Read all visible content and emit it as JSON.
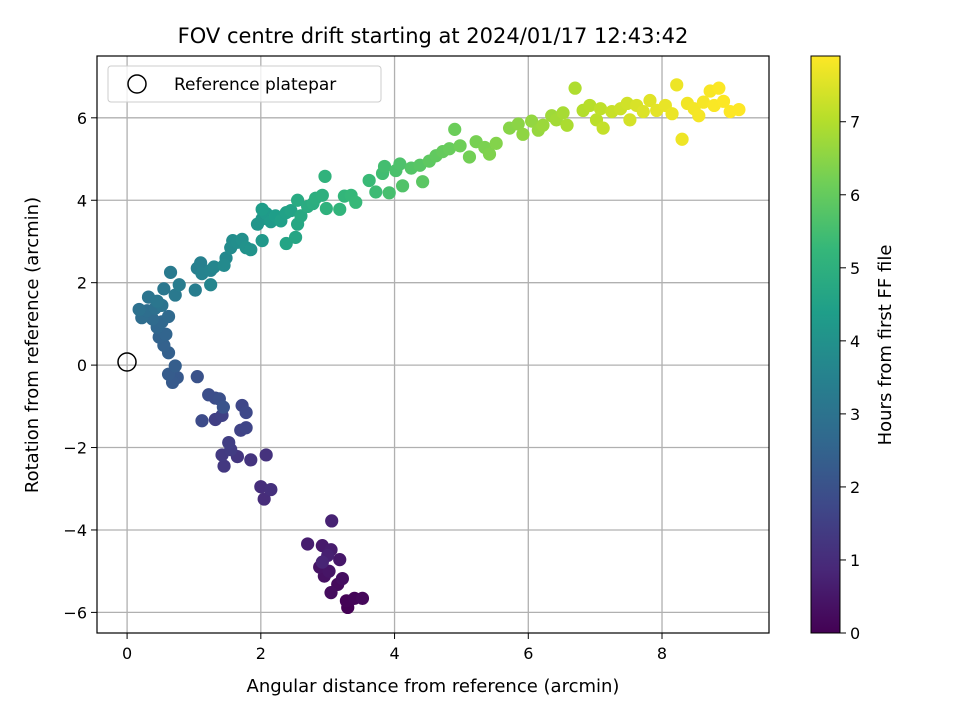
{
  "chart_data": {
    "type": "scatter",
    "title": "FOV centre drift starting at 2024/01/17 12:43:42",
    "xlabel": "Angular distance from reference (arcmin)",
    "ylabel": "Rotation from reference (arcmin)",
    "xlim": [
      -0.45,
      9.6
    ],
    "ylim": [
      -6.5,
      7.5
    ],
    "xticks": [
      0,
      2,
      4,
      6,
      8
    ],
    "xtick_labels": [
      "0",
      "2",
      "4",
      "6",
      "8"
    ],
    "yticks": [
      -6,
      -4,
      -2,
      0,
      2,
      4,
      6
    ],
    "ytick_labels": [
      "−6",
      "−4",
      "−2",
      "0",
      "2",
      "4",
      "6"
    ],
    "grid": true,
    "legend": {
      "position": "top-left",
      "entries": [
        {
          "label": "Reference platepar",
          "marker": "open-circle"
        }
      ]
    },
    "reference_point": {
      "x": 0,
      "y": 0
    },
    "colorbar": {
      "label": "Hours from first FF file",
      "range": [
        0,
        7.9
      ],
      "ticks": [
        0,
        1,
        2,
        3,
        4,
        5,
        6,
        7
      ],
      "tick_labels": [
        "0",
        "1",
        "2",
        "3",
        "4",
        "5",
        "6",
        "7"
      ],
      "colormap": "viridis"
    },
    "colormap_stops": [
      "#440154",
      "#482878",
      "#3e4989",
      "#31688e",
      "#26828e",
      "#1f9e89",
      "#35b779",
      "#6ece58",
      "#b5de2b",
      "#fde725"
    ],
    "points": [
      {
        "x": 3.3,
        "y": -5.88,
        "h": 0.0
      },
      {
        "x": 3.28,
        "y": -5.72,
        "h": 0.05
      },
      {
        "x": 3.4,
        "y": -5.66,
        "h": 0.1
      },
      {
        "x": 3.52,
        "y": -5.66,
        "h": 0.15
      },
      {
        "x": 3.15,
        "y": -5.32,
        "h": 0.2
      },
      {
        "x": 3.05,
        "y": -5.52,
        "h": 0.25
      },
      {
        "x": 3.22,
        "y": -5.18,
        "h": 0.3
      },
      {
        "x": 2.95,
        "y": -5.12,
        "h": 0.35
      },
      {
        "x": 2.88,
        "y": -4.9,
        "h": 0.4
      },
      {
        "x": 3.02,
        "y": -5.0,
        "h": 0.45
      },
      {
        "x": 3.18,
        "y": -4.72,
        "h": 0.5
      },
      {
        "x": 2.92,
        "y": -4.38,
        "h": 0.55
      },
      {
        "x": 3.05,
        "y": -4.48,
        "h": 0.6
      },
      {
        "x": 2.7,
        "y": -4.34,
        "h": 0.65
      },
      {
        "x": 3.0,
        "y": -4.62,
        "h": 0.7
      },
      {
        "x": 3.06,
        "y": -3.78,
        "h": 0.75
      },
      {
        "x": 2.92,
        "y": -4.78,
        "h": 0.8
      },
      {
        "x": 2.05,
        "y": -3.25,
        "h": 1.0
      },
      {
        "x": 2.0,
        "y": -2.95,
        "h": 1.05
      },
      {
        "x": 2.15,
        "y": -3.02,
        "h": 1.1
      },
      {
        "x": 2.08,
        "y": -2.18,
        "h": 1.15
      },
      {
        "x": 1.85,
        "y": -2.3,
        "h": 1.2
      },
      {
        "x": 1.65,
        "y": -2.22,
        "h": 1.25
      },
      {
        "x": 1.45,
        "y": -2.45,
        "h": 1.3
      },
      {
        "x": 1.42,
        "y": -2.18,
        "h": 1.35
      },
      {
        "x": 1.55,
        "y": -2.05,
        "h": 1.4
      },
      {
        "x": 1.52,
        "y": -1.88,
        "h": 1.45
      },
      {
        "x": 1.32,
        "y": -1.32,
        "h": 1.5
      },
      {
        "x": 1.42,
        "y": -1.22,
        "h": 1.55
      },
      {
        "x": 1.7,
        "y": -1.58,
        "h": 1.6
      },
      {
        "x": 1.78,
        "y": -1.52,
        "h": 1.65
      },
      {
        "x": 1.72,
        "y": -0.98,
        "h": 1.7
      },
      {
        "x": 1.78,
        "y": -1.15,
        "h": 1.75
      },
      {
        "x": 1.12,
        "y": -1.35,
        "h": 1.8
      },
      {
        "x": 1.32,
        "y": -0.8,
        "h": 1.85
      },
      {
        "x": 1.22,
        "y": -0.72,
        "h": 1.9
      },
      {
        "x": 1.38,
        "y": -0.82,
        "h": 1.95
      },
      {
        "x": 1.05,
        "y": -0.28,
        "h": 2.0
      },
      {
        "x": 1.44,
        "y": -1.02,
        "h": 2.05
      },
      {
        "x": 0.75,
        "y": -0.3,
        "h": 2.2
      },
      {
        "x": 0.68,
        "y": -0.42,
        "h": 2.25
      },
      {
        "x": 0.62,
        "y": -0.22,
        "h": 2.3
      },
      {
        "x": 0.72,
        "y": -0.02,
        "h": 2.35
      },
      {
        "x": 0.62,
        "y": 0.3,
        "h": 2.4
      },
      {
        "x": 0.55,
        "y": 0.48,
        "h": 2.45
      },
      {
        "x": 0.48,
        "y": 0.68,
        "h": 2.5
      },
      {
        "x": 0.58,
        "y": 0.75,
        "h": 2.55
      },
      {
        "x": 0.45,
        "y": 0.92,
        "h": 2.6
      },
      {
        "x": 0.52,
        "y": 1.05,
        "h": 2.65
      },
      {
        "x": 0.62,
        "y": 1.18,
        "h": 2.7
      },
      {
        "x": 0.38,
        "y": 1.12,
        "h": 2.75
      },
      {
        "x": 0.22,
        "y": 1.15,
        "h": 2.8
      },
      {
        "x": 0.3,
        "y": 1.32,
        "h": 2.85
      },
      {
        "x": 0.42,
        "y": 1.38,
        "h": 2.9
      },
      {
        "x": 0.18,
        "y": 1.35,
        "h": 2.95
      },
      {
        "x": 0.52,
        "y": 1.45,
        "h": 3.0
      },
      {
        "x": 0.32,
        "y": 1.65,
        "h": 3.05
      },
      {
        "x": 0.45,
        "y": 1.55,
        "h": 3.1
      },
      {
        "x": 0.55,
        "y": 1.85,
        "h": 3.15
      },
      {
        "x": 0.72,
        "y": 1.7,
        "h": 3.2
      },
      {
        "x": 0.65,
        "y": 2.25,
        "h": 3.25
      },
      {
        "x": 0.78,
        "y": 1.95,
        "h": 3.3
      },
      {
        "x": 1.02,
        "y": 1.82,
        "h": 3.35
      },
      {
        "x": 1.05,
        "y": 2.35,
        "h": 3.4
      },
      {
        "x": 1.1,
        "y": 2.48,
        "h": 3.45
      },
      {
        "x": 1.12,
        "y": 2.22,
        "h": 3.5
      },
      {
        "x": 1.25,
        "y": 2.3,
        "h": 3.55
      },
      {
        "x": 1.25,
        "y": 1.95,
        "h": 3.6
      },
      {
        "x": 1.3,
        "y": 2.38,
        "h": 3.65
      },
      {
        "x": 1.48,
        "y": 2.6,
        "h": 3.7
      },
      {
        "x": 1.45,
        "y": 2.42,
        "h": 3.75
      },
      {
        "x": 1.55,
        "y": 2.85,
        "h": 3.8
      },
      {
        "x": 1.58,
        "y": 3.02,
        "h": 3.85
      },
      {
        "x": 1.65,
        "y": 2.98,
        "h": 3.9
      },
      {
        "x": 1.72,
        "y": 3.05,
        "h": 3.95
      },
      {
        "x": 1.78,
        "y": 2.85,
        "h": 4.0
      },
      {
        "x": 1.85,
        "y": 2.8,
        "h": 4.05
      },
      {
        "x": 1.95,
        "y": 3.42,
        "h": 4.1
      },
      {
        "x": 2.02,
        "y": 3.55,
        "h": 4.15
      },
      {
        "x": 2.02,
        "y": 3.02,
        "h": 4.2
      },
      {
        "x": 2.08,
        "y": 3.68,
        "h": 4.25
      },
      {
        "x": 2.15,
        "y": 3.48,
        "h": 4.3
      },
      {
        "x": 2.02,
        "y": 3.78,
        "h": 4.35
      },
      {
        "x": 2.22,
        "y": 3.62,
        "h": 4.4
      },
      {
        "x": 2.3,
        "y": 3.5,
        "h": 4.45
      },
      {
        "x": 2.38,
        "y": 3.7,
        "h": 4.5
      },
      {
        "x": 2.45,
        "y": 3.75,
        "h": 4.55
      },
      {
        "x": 2.38,
        "y": 2.95,
        "h": 4.6
      },
      {
        "x": 2.52,
        "y": 3.1,
        "h": 4.65
      },
      {
        "x": 2.55,
        "y": 3.42,
        "h": 4.7
      },
      {
        "x": 2.6,
        "y": 3.62,
        "h": 4.75
      },
      {
        "x": 2.55,
        "y": 4.0,
        "h": 4.8
      },
      {
        "x": 2.7,
        "y": 3.85,
        "h": 4.85
      },
      {
        "x": 2.78,
        "y": 3.92,
        "h": 4.9
      },
      {
        "x": 2.82,
        "y": 4.05,
        "h": 4.95
      },
      {
        "x": 2.92,
        "y": 4.12,
        "h": 5.0
      },
      {
        "x": 2.98,
        "y": 3.8,
        "h": 5.05
      },
      {
        "x": 2.96,
        "y": 4.58,
        "h": 5.1
      },
      {
        "x": 3.18,
        "y": 3.78,
        "h": 5.15
      },
      {
        "x": 3.25,
        "y": 4.1,
        "h": 5.2
      },
      {
        "x": 3.35,
        "y": 4.12,
        "h": 5.25
      },
      {
        "x": 3.42,
        "y": 3.95,
        "h": 5.3
      },
      {
        "x": 3.62,
        "y": 4.48,
        "h": 5.35
      },
      {
        "x": 3.72,
        "y": 4.2,
        "h": 5.4
      },
      {
        "x": 3.82,
        "y": 4.65,
        "h": 5.45
      },
      {
        "x": 3.85,
        "y": 4.82,
        "h": 5.5
      },
      {
        "x": 3.92,
        "y": 4.18,
        "h": 5.55
      },
      {
        "x": 4.02,
        "y": 4.72,
        "h": 5.6
      },
      {
        "x": 4.08,
        "y": 4.88,
        "h": 5.65
      },
      {
        "x": 4.12,
        "y": 4.35,
        "h": 5.7
      },
      {
        "x": 4.25,
        "y": 4.78,
        "h": 5.75
      },
      {
        "x": 4.38,
        "y": 4.85,
        "h": 5.8
      },
      {
        "x": 4.42,
        "y": 4.45,
        "h": 5.85
      },
      {
        "x": 4.52,
        "y": 4.95,
        "h": 5.9
      },
      {
        "x": 4.62,
        "y": 5.08,
        "h": 5.95
      },
      {
        "x": 4.72,
        "y": 5.18,
        "h": 6.0
      },
      {
        "x": 4.82,
        "y": 5.25,
        "h": 6.05
      },
      {
        "x": 4.9,
        "y": 5.72,
        "h": 6.1
      },
      {
        "x": 4.98,
        "y": 5.32,
        "h": 6.15
      },
      {
        "x": 5.12,
        "y": 5.05,
        "h": 6.2
      },
      {
        "x": 5.22,
        "y": 5.42,
        "h": 6.25
      },
      {
        "x": 5.35,
        "y": 5.28,
        "h": 6.3
      },
      {
        "x": 5.42,
        "y": 5.12,
        "h": 6.35
      },
      {
        "x": 5.52,
        "y": 5.38,
        "h": 6.4
      },
      {
        "x": 5.72,
        "y": 5.75,
        "h": 6.45
      },
      {
        "x": 5.85,
        "y": 5.85,
        "h": 6.5
      },
      {
        "x": 5.92,
        "y": 5.6,
        "h": 6.55
      },
      {
        "x": 6.05,
        "y": 5.92,
        "h": 6.6
      },
      {
        "x": 6.15,
        "y": 5.7,
        "h": 6.65
      },
      {
        "x": 6.22,
        "y": 5.82,
        "h": 6.7
      },
      {
        "x": 6.35,
        "y": 6.05,
        "h": 6.75
      },
      {
        "x": 6.42,
        "y": 5.95,
        "h": 6.8
      },
      {
        "x": 6.52,
        "y": 6.12,
        "h": 6.85
      },
      {
        "x": 6.58,
        "y": 5.82,
        "h": 6.9
      },
      {
        "x": 6.7,
        "y": 6.72,
        "h": 6.95
      },
      {
        "x": 6.82,
        "y": 6.18,
        "h": 7.0
      },
      {
        "x": 6.92,
        "y": 6.3,
        "h": 7.05
      },
      {
        "x": 7.02,
        "y": 5.95,
        "h": 7.1
      },
      {
        "x": 7.08,
        "y": 6.22,
        "h": 7.15
      },
      {
        "x": 7.12,
        "y": 5.75,
        "h": 7.2
      },
      {
        "x": 7.25,
        "y": 6.15,
        "h": 7.25
      },
      {
        "x": 7.38,
        "y": 6.22,
        "h": 7.3
      },
      {
        "x": 7.48,
        "y": 6.35,
        "h": 7.35
      },
      {
        "x": 7.52,
        "y": 5.95,
        "h": 7.4
      },
      {
        "x": 7.62,
        "y": 6.3,
        "h": 7.45
      },
      {
        "x": 7.72,
        "y": 6.15,
        "h": 7.5
      },
      {
        "x": 7.82,
        "y": 6.42,
        "h": 7.55
      },
      {
        "x": 7.92,
        "y": 6.18,
        "h": 7.6
      },
      {
        "x": 8.05,
        "y": 6.3,
        "h": 7.65
      },
      {
        "x": 8.15,
        "y": 6.1,
        "h": 7.68
      },
      {
        "x": 8.22,
        "y": 6.8,
        "h": 7.7
      },
      {
        "x": 8.3,
        "y": 5.48,
        "h": 7.72
      },
      {
        "x": 8.38,
        "y": 6.35,
        "h": 7.75
      },
      {
        "x": 8.48,
        "y": 6.22,
        "h": 7.78
      },
      {
        "x": 8.55,
        "y": 6.05,
        "h": 7.8
      },
      {
        "x": 8.62,
        "y": 6.38,
        "h": 7.82
      },
      {
        "x": 8.72,
        "y": 6.65,
        "h": 7.84
      },
      {
        "x": 8.78,
        "y": 6.3,
        "h": 7.86
      },
      {
        "x": 8.85,
        "y": 6.72,
        "h": 7.88
      },
      {
        "x": 8.92,
        "y": 6.4,
        "h": 7.89
      },
      {
        "x": 9.02,
        "y": 6.15,
        "h": 7.9
      },
      {
        "x": 9.15,
        "y": 6.2,
        "h": 7.9
      }
    ]
  }
}
